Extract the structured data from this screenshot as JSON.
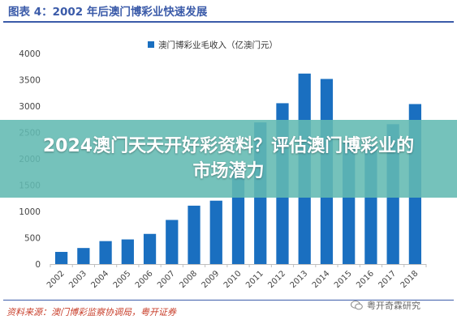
{
  "figure_title": "图表 4：2002 年后澳门博彩业快速发展",
  "source_note": "资料来源：澳门博彩监察协调局，粤开证券",
  "watermark_text": "粤开奇霖研究",
  "overlay_headline": "2024澳门天天开好彩资料？评估澳门博彩业的市场潜力",
  "colors": {
    "bar": "#1a6fc0",
    "title": "#3b5ba9",
    "source": "#c83e2a",
    "overlay": "#62b9b2"
  },
  "chart_data": {
    "type": "bar",
    "title": "",
    "xlabel": "",
    "ylabel": "",
    "ylim": [
      0,
      4000
    ],
    "yticks": [
      0,
      500,
      1000,
      1500,
      2000,
      2500,
      3000,
      3500,
      4000
    ],
    "grid": false,
    "legend_position": "top-center",
    "categories": [
      "2002",
      "2003",
      "2004",
      "2005",
      "2006",
      "2007",
      "2008",
      "2009",
      "2010",
      "2011",
      "2012",
      "2013",
      "2014",
      "2015",
      "2016",
      "2017",
      "2018"
    ],
    "series": [
      {
        "name": "澳门博彩业毛收入（亿澳门元）",
        "values": [
          231,
          305,
          436,
          468,
          573,
          838,
          1109,
          1204,
          1883,
          2691,
          3055,
          3618,
          3516,
          2318,
          2242,
          2657,
          3039
        ]
      }
    ]
  }
}
